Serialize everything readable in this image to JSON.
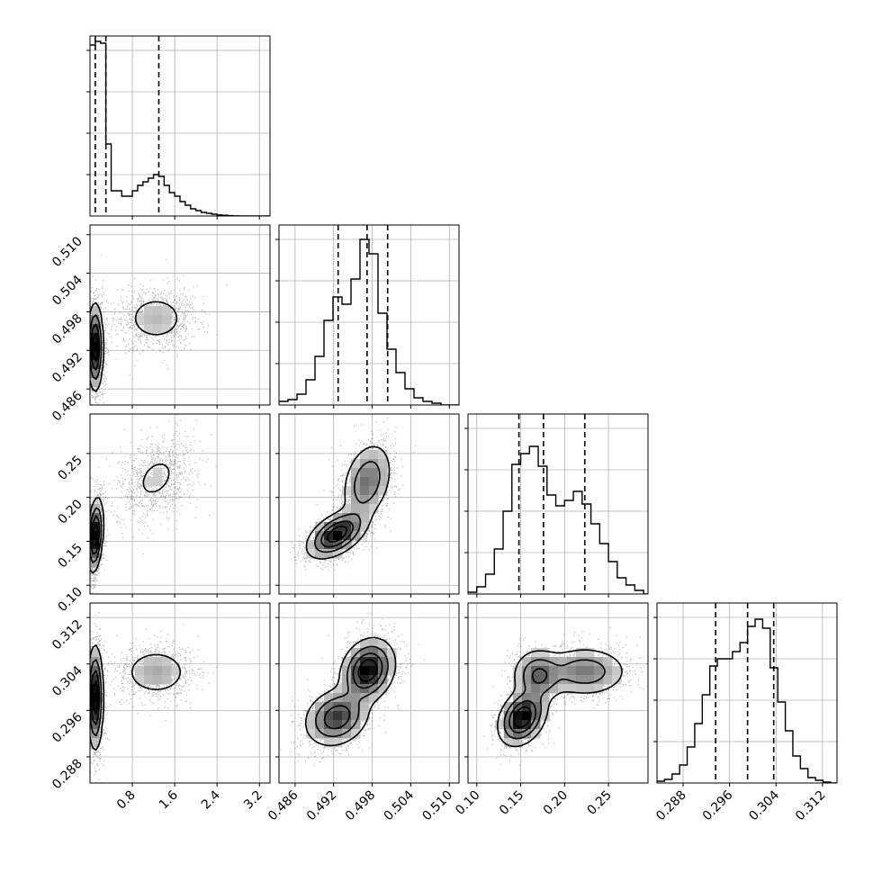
{
  "chart_data": {
    "type": "corner",
    "parameters": [
      {
        "range": [
          0.0,
          3.4
        ],
        "ticks": [
          0.8,
          1.6,
          2.4,
          3.2
        ],
        "tick_labels": [
          "0.8",
          "1.6",
          "2.4",
          "3.2"
        ],
        "quantiles": [
          0.1,
          0.3,
          1.3
        ]
      },
      {
        "range": [
          0.4835,
          0.5115
        ],
        "ticks": [
          0.486,
          0.492,
          0.498,
          0.504,
          0.51
        ],
        "tick_labels": [
          "0.486",
          "0.492",
          "0.498",
          "0.504",
          "0.510"
        ],
        "quantiles": [
          0.4927,
          0.4972,
          0.5004
        ]
      },
      {
        "range": [
          0.09,
          0.295
        ],
        "ticks": [
          0.1,
          0.15,
          0.2,
          0.25
        ],
        "tick_labels": [
          "0.10",
          "0.15",
          "0.20",
          "0.25"
        ],
        "quantiles": [
          0.148,
          0.176,
          0.223
        ]
      },
      {
        "range": [
          0.2835,
          0.3145
        ],
        "ticks": [
          0.288,
          0.296,
          0.304,
          0.312
        ],
        "tick_labels": [
          "0.288",
          "0.296",
          "0.304",
          "0.312"
        ],
        "quantiles": [
          0.2936,
          0.2991,
          0.3036
        ]
      }
    ],
    "histograms": [
      {
        "edges": [
          0.0,
          0.1,
          0.2,
          0.3,
          0.4,
          0.5,
          0.6,
          0.7,
          0.8,
          0.9,
          1.0,
          1.1,
          1.2,
          1.3,
          1.4,
          1.5,
          1.6,
          1.7,
          1.8,
          1.9,
          2.0,
          2.1,
          2.2,
          2.3,
          2.4,
          2.5,
          2.6,
          2.7,
          2.8,
          2.9,
          3.0,
          3.1,
          3.2,
          3.3,
          3.4
        ],
        "counts": [
          0.95,
          0.97,
          0.96,
          0.4,
          0.14,
          0.14,
          0.11,
          0.11,
          0.14,
          0.17,
          0.19,
          0.21,
          0.23,
          0.22,
          0.17,
          0.13,
          0.11,
          0.08,
          0.06,
          0.04,
          0.03,
          0.02,
          0.015,
          0.01,
          0.006,
          0.004,
          0.002,
          0.001,
          0.0,
          0.0,
          0.0,
          0.0,
          0.0,
          0.0
        ]
      },
      {
        "edges": [
          0.4835,
          0.4849,
          0.4863,
          0.4877,
          0.4891,
          0.4905,
          0.4919,
          0.4933,
          0.4947,
          0.4961,
          0.4975,
          0.4989,
          0.5003,
          0.5017,
          0.5031,
          0.5045,
          0.5059,
          0.5073,
          0.5087,
          0.5101,
          0.5115
        ],
        "counts": [
          0.02,
          0.03,
          0.06,
          0.14,
          0.27,
          0.47,
          0.6,
          0.56,
          0.7,
          0.92,
          0.84,
          0.51,
          0.31,
          0.18,
          0.09,
          0.04,
          0.02,
          0.01,
          0.0,
          0.0
        ]
      },
      {
        "edges": [
          0.09,
          0.1,
          0.11,
          0.12,
          0.13,
          0.14,
          0.15,
          0.16,
          0.17,
          0.18,
          0.19,
          0.2,
          0.21,
          0.22,
          0.23,
          0.24,
          0.25,
          0.26,
          0.27,
          0.28,
          0.29,
          0.295
        ],
        "counts": [
          0.01,
          0.04,
          0.11,
          0.25,
          0.46,
          0.72,
          0.78,
          0.82,
          0.71,
          0.55,
          0.49,
          0.52,
          0.57,
          0.5,
          0.39,
          0.28,
          0.18,
          0.09,
          0.05,
          0.02,
          0.0
        ]
      },
      {
        "edges": [
          0.2835,
          0.2848,
          0.2861,
          0.2874,
          0.2887,
          0.29,
          0.2913,
          0.2926,
          0.2939,
          0.2952,
          0.2965,
          0.2978,
          0.2991,
          0.3004,
          0.3017,
          0.303,
          0.3043,
          0.3056,
          0.3069,
          0.3082,
          0.3095,
          0.3108,
          0.3121,
          0.3134,
          0.3145
        ],
        "counts": [
          0.01,
          0.02,
          0.05,
          0.1,
          0.2,
          0.33,
          0.49,
          0.65,
          0.69,
          0.69,
          0.73,
          0.78,
          0.87,
          0.91,
          0.86,
          0.64,
          0.45,
          0.29,
          0.15,
          0.08,
          0.03,
          0.015,
          0.005,
          0.0
        ]
      }
    ],
    "pairs": [
      {
        "row": 1,
        "col": 0,
        "clusters": [
          {
            "mx": 0.1,
            "my": 0.4925,
            "sx": 0.07,
            "sy": 0.0032,
            "r": 0.0,
            "w": 0.62
          },
          {
            "mx": 1.25,
            "my": 0.497,
            "sx": 0.32,
            "sy": 0.0021,
            "r": 0.0,
            "w": 0.38
          }
        ]
      },
      {
        "row": 2,
        "col": 0,
        "clusters": [
          {
            "mx": 0.1,
            "my": 0.157,
            "sx": 0.07,
            "sy": 0.02,
            "r": 0.3,
            "w": 0.62
          },
          {
            "mx": 1.25,
            "my": 0.222,
            "sx": 0.32,
            "sy": 0.021,
            "r": 0.35,
            "w": 0.38
          }
        ]
      },
      {
        "row": 2,
        "col": 1,
        "clusters": [
          {
            "mx": 0.4925,
            "my": 0.158,
            "sx": 0.0022,
            "sy": 0.013,
            "r": 0.5,
            "w": 0.55
          },
          {
            "mx": 0.4972,
            "my": 0.218,
            "sx": 0.0019,
            "sy": 0.022,
            "r": 0.3,
            "w": 0.45
          }
        ]
      },
      {
        "row": 3,
        "col": 0,
        "clusters": [
          {
            "mx": 0.1,
            "my": 0.2982,
            "sx": 0.07,
            "sy": 0.0042,
            "r": 0.0,
            "w": 0.62
          },
          {
            "mx": 1.25,
            "my": 0.3026,
            "sx": 0.32,
            "sy": 0.0021,
            "r": 0.0,
            "w": 0.38
          }
        ]
      },
      {
        "row": 3,
        "col": 1,
        "clusters": [
          {
            "mx": 0.4925,
            "my": 0.2948,
            "sx": 0.0024,
            "sy": 0.0024,
            "r": 0.2,
            "w": 0.45
          },
          {
            "mx": 0.4973,
            "my": 0.3029,
            "sx": 0.002,
            "sy": 0.0026,
            "r": 0.2,
            "w": 0.55
          }
        ]
      },
      {
        "row": 3,
        "col": 2,
        "clusters": [
          {
            "mx": 0.152,
            "my": 0.2948,
            "sx": 0.013,
            "sy": 0.0023,
            "r": 0.3,
            "w": 0.42
          },
          {
            "mx": 0.223,
            "my": 0.3027,
            "sx": 0.024,
            "sy": 0.0021,
            "r": 0.0,
            "w": 0.33
          },
          {
            "mx": 0.17,
            "my": 0.302,
            "sx": 0.014,
            "sy": 0.0022,
            "r": 0.0,
            "w": 0.25
          }
        ]
      }
    ],
    "grid": true
  }
}
